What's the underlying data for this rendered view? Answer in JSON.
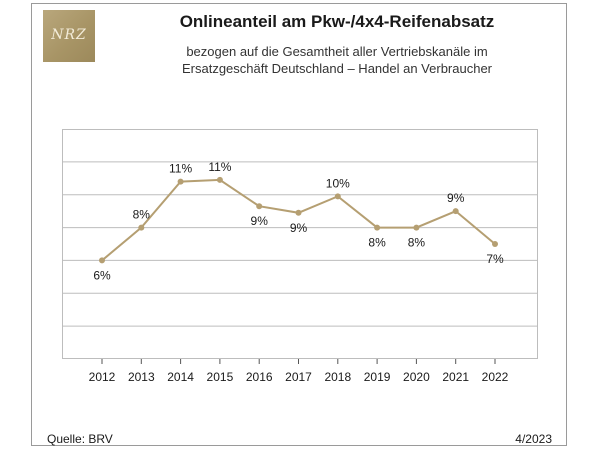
{
  "logo": {
    "text": "NRZ"
  },
  "header": {
    "title": "Onlineanteil am Pkw-/4x4-Reifenabsatz",
    "subtitle_line1": "bezogen auf die Gesamtheit aller Vertriebskanäle im",
    "subtitle_line2": "Ersatzgeschäft Deutschland – Handel an Verbraucher"
  },
  "footer": {
    "source": "Quelle: BRV",
    "date": "4/2023"
  },
  "chart_data": {
    "type": "line",
    "title": "Onlineanteil am Pkw-/4x4-Reifenabsatz",
    "categories": [
      "2012",
      "2013",
      "2014",
      "2015",
      "2016",
      "2017",
      "2018",
      "2019",
      "2020",
      "2021",
      "2022"
    ],
    "series": [
      {
        "name": "Onlineanteil",
        "values": [
          6,
          8,
          10.8,
          10.9,
          9.3,
          8.9,
          9.9,
          8,
          8,
          9,
          7
        ],
        "labels": [
          "6%",
          "8%",
          "11%",
          "11%",
          "9%",
          "9%",
          "10%",
          "8%",
          "8%",
          "9%",
          "7%"
        ],
        "label_positions": [
          "below",
          "above",
          "above",
          "above",
          "below",
          "below",
          "above",
          "below",
          "below",
          "above",
          "below"
        ]
      }
    ],
    "ylim": [
      0,
      14
    ],
    "grid": true,
    "xlabel": "",
    "ylabel": "",
    "colors": {
      "line": "#b59f72",
      "grid": "#bdbdbd",
      "frame": "#9a9a9a",
      "logo": "#a89566"
    }
  }
}
